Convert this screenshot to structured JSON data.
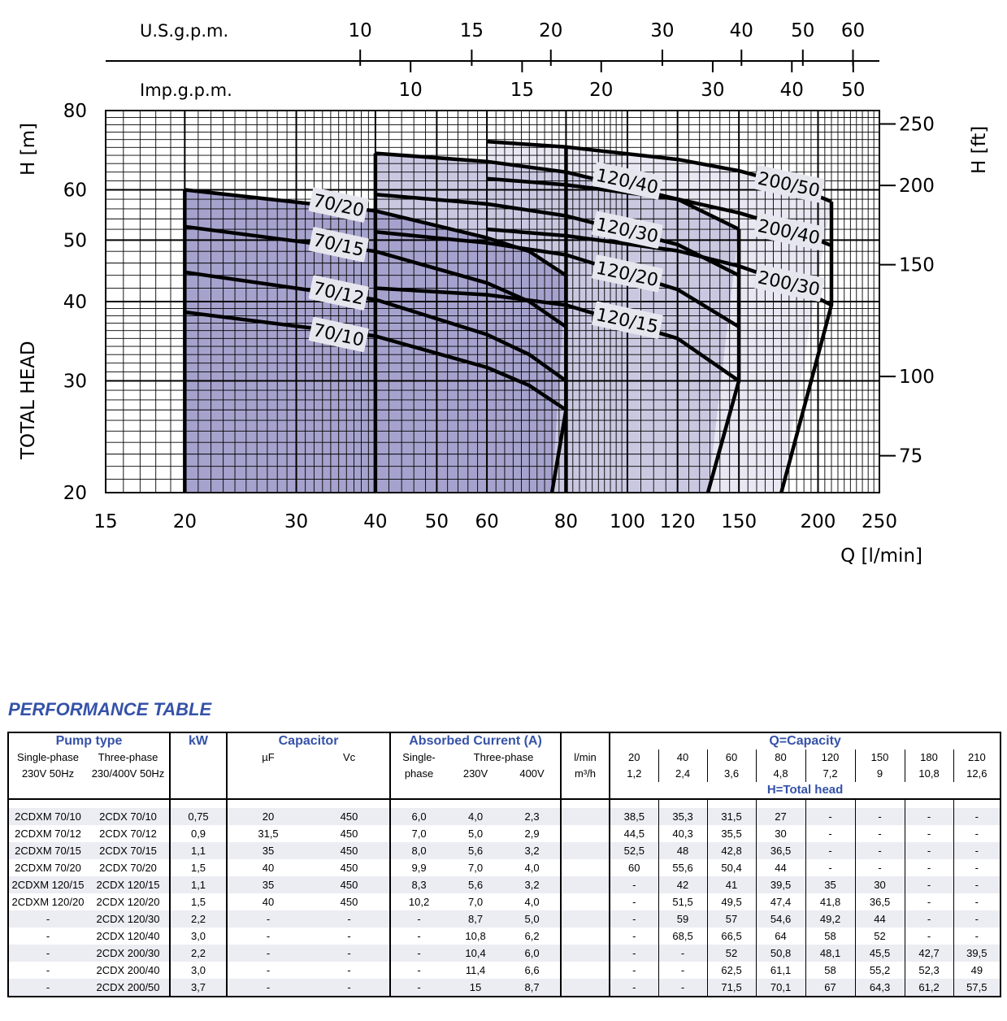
{
  "chart_data": {
    "type": "line",
    "title": "",
    "xlabel": "Q [l/min]",
    "ylabel": "TOTAL HEAD   H [m]",
    "y2label": "H [ft]",
    "xscale": "log",
    "yscale": "log",
    "xlim": [
      15,
      250
    ],
    "ylim": [
      20,
      80
    ],
    "x_ticks": [
      "15",
      "20",
      "30",
      "40",
      "50",
      "60",
      "80",
      "100",
      "120",
      "150",
      "200",
      "250"
    ],
    "y_ticks": [
      "20",
      "30",
      "40",
      "50",
      "60",
      "80"
    ],
    "y2_ticks": [
      "75",
      "100",
      "150",
      "200",
      "250"
    ],
    "us_gpm_label": "U.S.g.p.m.",
    "us_gpm_ticks": [
      "10",
      "15",
      "20",
      "30",
      "40",
      "50",
      "60"
    ],
    "imp_gpm_label": "Imp.g.p.m.",
    "imp_gpm_ticks": [
      "10",
      "15",
      "20",
      "30",
      "40",
      "50"
    ],
    "series": [
      {
        "name": "70/10",
        "x": [
          20,
          40,
          60,
          70,
          80
        ],
        "y": [
          38.5,
          35.3,
          31.5,
          29.5,
          27
        ]
      },
      {
        "name": "70/12",
        "x": [
          20,
          40,
          60,
          70,
          80
        ],
        "y": [
          44.5,
          40.3,
          35.5,
          33,
          30
        ]
      },
      {
        "name": "70/15",
        "x": [
          20,
          40,
          60,
          70,
          80
        ],
        "y": [
          52.5,
          48,
          42.8,
          40,
          36.5
        ]
      },
      {
        "name": "70/20",
        "x": [
          20,
          40,
          60,
          70,
          80
        ],
        "y": [
          60,
          55.6,
          50.4,
          48,
          44
        ]
      },
      {
        "name": "120/15",
        "x": [
          40,
          60,
          80,
          120,
          150
        ],
        "y": [
          42,
          41,
          39.5,
          35,
          30
        ]
      },
      {
        "name": "120/20",
        "x": [
          40,
          60,
          80,
          120,
          150
        ],
        "y": [
          51.5,
          49.5,
          47.4,
          41.8,
          36.5
        ]
      },
      {
        "name": "120/30",
        "x": [
          40,
          60,
          80,
          120,
          150
        ],
        "y": [
          59,
          57,
          54.6,
          49.2,
          44
        ]
      },
      {
        "name": "120/40",
        "x": [
          40,
          60,
          80,
          120,
          150
        ],
        "y": [
          68.5,
          66.5,
          64,
          58,
          52
        ]
      },
      {
        "name": "200/30",
        "x": [
          60,
          80,
          120,
          150,
          180,
          210
        ],
        "y": [
          52,
          50.8,
          48.1,
          45.5,
          42.7,
          39.5
        ]
      },
      {
        "name": "200/40",
        "x": [
          60,
          80,
          120,
          150,
          180,
          210
        ],
        "y": [
          62.5,
          61.1,
          58,
          55.2,
          52.3,
          49
        ]
      },
      {
        "name": "200/50",
        "x": [
          60,
          80,
          120,
          150,
          180,
          210
        ],
        "y": [
          71.5,
          70.1,
          67,
          64.3,
          61.2,
          57.5
        ]
      }
    ],
    "colors": {
      "group70": "#a5a3cd",
      "group120": "#cac8e1",
      "group200": "#e8e7f2",
      "grid": "#000000",
      "label_box": "#e6e6ee"
    }
  },
  "table": {
    "title": "PERFORMANCE TABLE",
    "h_pump_type": "Pump type",
    "h_single_phase": "Single-phase",
    "h_single_phase_sub": "230V 50Hz",
    "h_three_phase": "Three-phase",
    "h_three_phase_sub": "230/400V 50Hz",
    "h_kw": "kW",
    "h_capacitor": "Capacitor",
    "h_uf": "µF",
    "h_vc": "Vc",
    "h_absorbed": "Absorbed Current  (A)",
    "h_single": "Single-",
    "h_single2": "phase",
    "h_three": "Three-phase",
    "h_230": "230V",
    "h_400": "400V",
    "h_lmin": "l/min",
    "h_m3h": "m³/h",
    "h_capacity": "Q=Capacity",
    "h_head": "H=Total head",
    "q_lmin": [
      "20",
      "40",
      "60",
      "80",
      "120",
      "150",
      "180",
      "210"
    ],
    "q_m3h": [
      "1,2",
      "2,4",
      "3,6",
      "4,8",
      "7,2",
      "9",
      "10,8",
      "12,6"
    ],
    "rows": [
      {
        "single": "2CDXM 70/10",
        "three": "2CDX  70/10",
        "kw": "0,75",
        "uf": "20",
        "vc": "450",
        "a1": "6,0",
        "a230": "4,0",
        "a400": "2,3",
        "h": [
          "38,5",
          "35,3",
          "31,5",
          "27",
          "-",
          "-",
          "-",
          "-"
        ]
      },
      {
        "single": "2CDXM 70/12",
        "three": "2CDX  70/12",
        "kw": "0,9",
        "uf": "31,5",
        "vc": "450",
        "a1": "7,0",
        "a230": "5,0",
        "a400": "2,9",
        "h": [
          "44,5",
          "40,3",
          "35,5",
          "30",
          "-",
          "-",
          "-",
          "-"
        ]
      },
      {
        "single": "2CDXM 70/15",
        "three": "2CDX  70/15",
        "kw": "1,1",
        "uf": "35",
        "vc": "450",
        "a1": "8,0",
        "a230": "5,6",
        "a400": "3,2",
        "h": [
          "52,5",
          "48",
          "42,8",
          "36,5",
          "-",
          "-",
          "-",
          "-"
        ]
      },
      {
        "single": "2CDXM 70/20",
        "three": "2CDX  70/20",
        "kw": "1,5",
        "uf": "40",
        "vc": "450",
        "a1": "9,9",
        "a230": "7,0",
        "a400": "4,0",
        "h": [
          "60",
          "55,6",
          "50,4",
          "44",
          "-",
          "-",
          "-",
          "-"
        ]
      },
      {
        "single": "2CDXM 120/15",
        "three": "2CDX 120/15",
        "kw": "1,1",
        "uf": "35",
        "vc": "450",
        "a1": "8,3",
        "a230": "5,6",
        "a400": "3,2",
        "h": [
          "-",
          "42",
          "41",
          "39,5",
          "35",
          "30",
          "-",
          "-"
        ]
      },
      {
        "single": "2CDXM 120/20",
        "three": "2CDX 120/20",
        "kw": "1,5",
        "uf": "40",
        "vc": "450",
        "a1": "10,2",
        "a230": "7,0",
        "a400": "4,0",
        "h": [
          "-",
          "51,5",
          "49,5",
          "47,4",
          "41,8",
          "36,5",
          "-",
          "-"
        ]
      },
      {
        "single": "-",
        "three": "2CDX 120/30",
        "kw": "2,2",
        "uf": "-",
        "vc": "-",
        "a1": "-",
        "a230": "8,7",
        "a400": "5,0",
        "h": [
          "-",
          "59",
          "57",
          "54,6",
          "49,2",
          "44",
          "-",
          "-"
        ]
      },
      {
        "single": "-",
        "three": "2CDX 120/40",
        "kw": "3,0",
        "uf": "-",
        "vc": "-",
        "a1": "-",
        "a230": "10,8",
        "a400": "6,2",
        "h": [
          "-",
          "68,5",
          "66,5",
          "64",
          "58",
          "52",
          "-",
          "-"
        ]
      },
      {
        "single": "-",
        "three": "2CDX 200/30",
        "kw": "2,2",
        "uf": "-",
        "vc": "-",
        "a1": "-",
        "a230": "10,4",
        "a400": "6,0",
        "h": [
          "-",
          "-",
          "52",
          "50,8",
          "48,1",
          "45,5",
          "42,7",
          "39,5"
        ]
      },
      {
        "single": "-",
        "three": "2CDX 200/40",
        "kw": "3,0",
        "uf": "-",
        "vc": "-",
        "a1": "-",
        "a230": "11,4",
        "a400": "6,6",
        "h": [
          "-",
          "-",
          "62,5",
          "61,1",
          "58",
          "55,2",
          "52,3",
          "49"
        ]
      },
      {
        "single": "-",
        "three": "2CDX 200/50",
        "kw": "3,7",
        "uf": "-",
        "vc": "-",
        "a1": "-",
        "a230": "15",
        "a400": "8,7",
        "h": [
          "-",
          "-",
          "71,5",
          "70,1",
          "67",
          "64,3",
          "61,2",
          "57,5"
        ]
      }
    ]
  }
}
